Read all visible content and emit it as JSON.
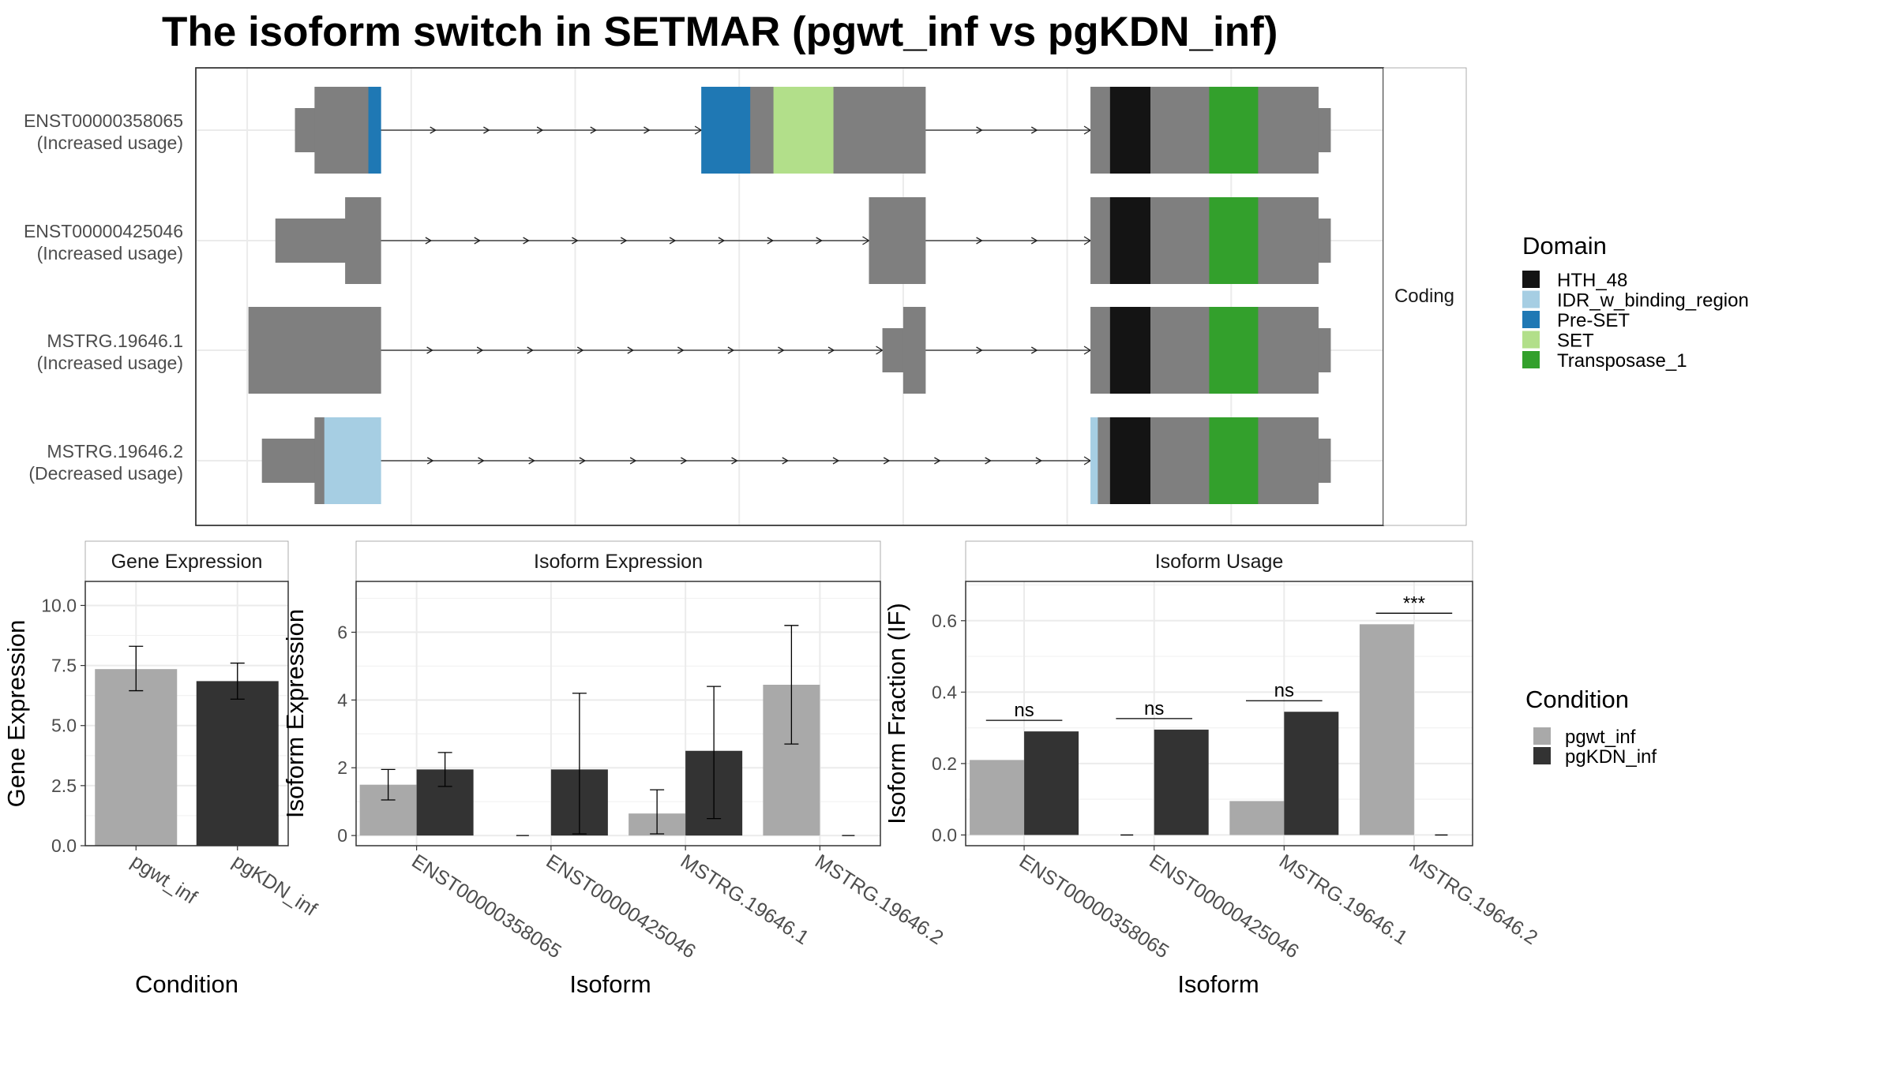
{
  "title": "The isoform switch in SETMAR (pgwt_inf vs pgKDN_inf)",
  "colors": {
    "exon": "#7f7f7f",
    "intron": "#222222",
    "HTH_48": "#141414",
    "IDR_w_binding_region": "#a6cee3",
    "Pre-SET": "#1f78b4",
    "SET": "#b2df8a",
    "Transposase_1": "#33a02c",
    "pgwt_inf": "#a9a9a9",
    "pgKDN_inf": "#333333",
    "grid": "#ebebeb",
    "panel_border": "#333333",
    "strip_bg": "#ffffff"
  },
  "transcript_plot": {
    "strip_label": "Coding",
    "isoforms": [
      {
        "label_id": "ENST00000358065",
        "label_usage": "(Increased usage)",
        "exons": [
          [
            241,
            257,
            "utr"
          ],
          [
            257,
            301,
            "cds"
          ],
          [
            301,
            311,
            "Pre-SET"
          ],
          [
            573,
            613,
            "Pre-SET"
          ],
          [
            613,
            632,
            "cds"
          ],
          [
            632,
            681,
            "SET"
          ],
          [
            681,
            756,
            "cds"
          ],
          [
            891,
            907,
            "cds"
          ],
          [
            907,
            940,
            "HTH_48"
          ],
          [
            940,
            988,
            "cds"
          ],
          [
            988,
            1028,
            "Transposase_1"
          ],
          [
            1028,
            1077,
            "cds"
          ],
          [
            1077,
            1087,
            "utr"
          ]
        ]
      },
      {
        "label_id": "ENST00000425046",
        "label_usage": "(Increased usage)",
        "exons": [
          [
            225,
            282,
            "utr"
          ],
          [
            282,
            311,
            "cds"
          ],
          [
            710,
            756,
            "cds"
          ],
          [
            891,
            907,
            "cds"
          ],
          [
            907,
            940,
            "HTH_48"
          ],
          [
            940,
            988,
            "cds"
          ],
          [
            988,
            1028,
            "Transposase_1"
          ],
          [
            1028,
            1077,
            "cds"
          ],
          [
            1077,
            1087,
            "utr"
          ]
        ]
      },
      {
        "label_id": "MSTRG.19646.1",
        "label_usage": "(Increased usage)",
        "exons": [
          [
            203,
            311,
            "cds"
          ],
          [
            721,
            738,
            "utr"
          ],
          [
            738,
            756,
            "cds"
          ],
          [
            891,
            907,
            "cds"
          ],
          [
            907,
            940,
            "HTH_48"
          ],
          [
            940,
            988,
            "cds"
          ],
          [
            988,
            1028,
            "Transposase_1"
          ],
          [
            1028,
            1077,
            "cds"
          ],
          [
            1077,
            1087,
            "utr"
          ]
        ]
      },
      {
        "label_id": "MSTRG.19646.2",
        "label_usage": "(Decreased usage)",
        "exons": [
          [
            214,
            257,
            "utr"
          ],
          [
            257,
            265,
            "cds"
          ],
          [
            265,
            311,
            "IDR_w_binding_region"
          ],
          [
            891,
            897,
            "IDR_w_binding_region"
          ],
          [
            897,
            907,
            "cds"
          ],
          [
            907,
            940,
            "HTH_48"
          ],
          [
            940,
            988,
            "cds"
          ],
          [
            988,
            1028,
            "Transposase_1"
          ],
          [
            1028,
            1077,
            "cds"
          ],
          [
            1077,
            1087,
            "utr"
          ]
        ]
      }
    ],
    "domain_legend": {
      "title": "Domain",
      "items": [
        "HTH_48",
        "IDR_w_binding_region",
        "Pre-SET",
        "SET",
        "Transposase_1"
      ]
    }
  },
  "condition_legend": {
    "title": "Condition",
    "items": [
      "pgwt_inf",
      "pgKDN_inf"
    ]
  },
  "chart_data": [
    {
      "type": "bar",
      "title": "Gene Expression",
      "xlabel": "Condition",
      "ylabel": "Gene Expression",
      "ylim": [
        0,
        11
      ],
      "yticks": [
        "0.0",
        "2.5",
        "5.0",
        "7.5",
        "10.0"
      ],
      "categories": [
        "pgwt_inf",
        "pgKDN_inf"
      ],
      "values": [
        7.35,
        6.85
      ],
      "error_low": [
        6.45,
        6.1
      ],
      "error_high": [
        8.3,
        7.6
      ],
      "grid": true,
      "legend": "none"
    },
    {
      "type": "bar",
      "title": "Isoform Expression",
      "xlabel": "Isoform",
      "ylabel": "Isoform Expression",
      "ylim": [
        -0.3,
        7.5
      ],
      "yticks": [
        "0",
        "2",
        "4",
        "6"
      ],
      "categories": [
        "ENST00000358065",
        "ENST00000425046",
        "MSTRG.19646.1",
        "MSTRG.19646.2"
      ],
      "series": [
        {
          "name": "pgwt_inf",
          "values": [
            1.5,
            0,
            0.65,
            4.45
          ],
          "error_low": [
            1.05,
            0,
            0.05,
            2.7
          ],
          "error_high": [
            1.95,
            0,
            1.35,
            6.2
          ]
        },
        {
          "name": "pgKDN_inf",
          "values": [
            1.95,
            1.95,
            2.5,
            0
          ],
          "error_low": [
            1.45,
            0.05,
            0.5,
            0
          ],
          "error_high": [
            2.45,
            4.2,
            4.4,
            0
          ]
        }
      ],
      "grid": true,
      "legend": "right"
    },
    {
      "type": "bar",
      "title": "Isoform Usage",
      "xlabel": "Isoform",
      "ylabel": "Isoform Fraction (IF)",
      "ylim": [
        -0.03,
        0.71
      ],
      "yticks": [
        "0.0",
        "0.2",
        "0.4",
        "0.6"
      ],
      "categories": [
        "ENST00000358065",
        "ENST00000425046",
        "MSTRG.19646.1",
        "MSTRG.19646.2"
      ],
      "series": [
        {
          "name": "pgwt_inf",
          "values": [
            0.21,
            0,
            0.095,
            0.59
          ]
        },
        {
          "name": "pgKDN_inf",
          "values": [
            0.29,
            0.295,
            0.345,
            0
          ]
        }
      ],
      "significance": [
        "ns",
        "ns",
        "ns",
        "***"
      ],
      "grid": true,
      "legend": "right"
    }
  ]
}
